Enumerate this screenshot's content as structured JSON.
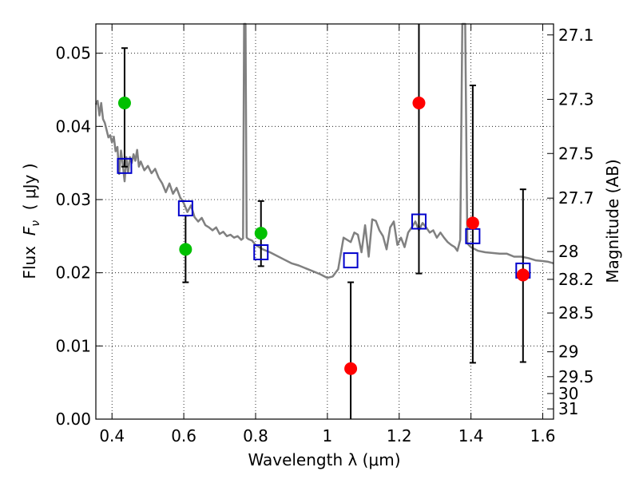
{
  "chart_data": {
    "type": "scatter",
    "xlabel": "Wavelength  λ (μm)",
    "ylabel_parts": {
      "pre": "Flux  ",
      "math": "F",
      "sub": "ν",
      "post": "  ( μJy )"
    },
    "y2label": "Magnitude (AB)",
    "xlim": [
      0.355,
      1.63
    ],
    "ylim": [
      0.0,
      0.054
    ],
    "grid": true,
    "x_ticks": [
      0.4,
      0.6,
      0.8,
      1.0,
      1.2,
      1.4,
      1.6
    ],
    "x_tick_labels": [
      "0.4",
      "0.6",
      "0.8",
      "1",
      "1.2",
      "1.4",
      "1.6"
    ],
    "y_ticks": [
      0.0,
      0.01,
      0.02,
      0.03,
      0.04,
      0.05
    ],
    "y_tick_labels": [
      "0.00",
      "0.01",
      "0.02",
      "0.03",
      "0.04",
      "0.05"
    ],
    "y2_ticks": [
      {
        "label": "27.1",
        "flux": 0.0525
      },
      {
        "label": "27.3",
        "flux": 0.0437
      },
      {
        "label": "27.5",
        "flux": 0.0363
      },
      {
        "label": "27.7",
        "flux": 0.0302
      },
      {
        "label": "28",
        "flux": 0.0229
      },
      {
        "label": "28.2",
        "flux": 0.0191
      },
      {
        "label": "28.5",
        "flux": 0.0145
      },
      {
        "label": "29",
        "flux": 0.0092
      },
      {
        "label": "29.5",
        "flux": 0.0058
      },
      {
        "label": "30",
        "flux": 0.0035
      },
      {
        "label": "31",
        "flux": 0.0014
      }
    ],
    "colors": {
      "template": "#808080",
      "green": "#00c000",
      "red": "#ff0000",
      "model_box": "#0000cc",
      "errorbar": "#000000",
      "grid": "#000000"
    },
    "observed_points": [
      {
        "x": 0.435,
        "y": 0.0432,
        "err_low": 0.0345,
        "err_high": 0.0507,
        "color": "green"
      },
      {
        "x": 0.605,
        "y": 0.0232,
        "err_low": 0.0187,
        "err_high": 0.0278,
        "color": "green"
      },
      {
        "x": 0.815,
        "y": 0.0254,
        "err_low": 0.0209,
        "err_high": 0.0298,
        "color": "green"
      },
      {
        "x": 1.065,
        "y": 0.0069,
        "err_low": 0.0,
        "err_high": 0.0187,
        "color": "red"
      },
      {
        "x": 1.255,
        "y": 0.0432,
        "err_low": 0.0199,
        "err_high": 0.054,
        "color": "red"
      },
      {
        "x": 1.405,
        "y": 0.0268,
        "err_low": 0.0077,
        "err_high": 0.0456,
        "color": "red"
      },
      {
        "x": 1.545,
        "y": 0.0197,
        "err_low": 0.0078,
        "err_high": 0.0314,
        "color": "red"
      }
    ],
    "model_points": [
      {
        "x": 0.435,
        "y": 0.0346
      },
      {
        "x": 0.605,
        "y": 0.0288
      },
      {
        "x": 0.815,
        "y": 0.0228
      },
      {
        "x": 1.065,
        "y": 0.0217
      },
      {
        "x": 1.255,
        "y": 0.027
      },
      {
        "x": 1.405,
        "y": 0.025
      },
      {
        "x": 1.545,
        "y": 0.0203
      }
    ],
    "template_spectrum": [
      [
        0.355,
        0.043
      ],
      [
        0.36,
        0.0435
      ],
      [
        0.365,
        0.0415
      ],
      [
        0.37,
        0.0432
      ],
      [
        0.375,
        0.041
      ],
      [
        0.38,
        0.0405
      ],
      [
        0.385,
        0.0395
      ],
      [
        0.39,
        0.0385
      ],
      [
        0.395,
        0.0388
      ],
      [
        0.4,
        0.0378
      ],
      [
        0.405,
        0.0386
      ],
      [
        0.41,
        0.0366
      ],
      [
        0.415,
        0.0372
      ],
      [
        0.42,
        0.0335
      ],
      [
        0.425,
        0.0367
      ],
      [
        0.43,
        0.0348
      ],
      [
        0.435,
        0.0325
      ],
      [
        0.44,
        0.0358
      ],
      [
        0.445,
        0.0337
      ],
      [
        0.45,
        0.0358
      ],
      [
        0.455,
        0.035
      ],
      [
        0.46,
        0.0362
      ],
      [
        0.465,
        0.0353
      ],
      [
        0.47,
        0.0368
      ],
      [
        0.475,
        0.0345
      ],
      [
        0.48,
        0.0352
      ],
      [
        0.49,
        0.034
      ],
      [
        0.5,
        0.0346
      ],
      [
        0.51,
        0.0336
      ],
      [
        0.52,
        0.0342
      ],
      [
        0.53,
        0.033
      ],
      [
        0.54,
        0.0322
      ],
      [
        0.55,
        0.031
      ],
      [
        0.56,
        0.0322
      ],
      [
        0.57,
        0.0308
      ],
      [
        0.58,
        0.0316
      ],
      [
        0.59,
        0.0303
      ],
      [
        0.6,
        0.0295
      ],
      [
        0.61,
        0.0283
      ],
      [
        0.62,
        0.0292
      ],
      [
        0.63,
        0.0276
      ],
      [
        0.64,
        0.027
      ],
      [
        0.65,
        0.0275
      ],
      [
        0.66,
        0.0265
      ],
      [
        0.67,
        0.0262
      ],
      [
        0.68,
        0.0258
      ],
      [
        0.69,
        0.0262
      ],
      [
        0.7,
        0.0253
      ],
      [
        0.71,
        0.0256
      ],
      [
        0.72,
        0.025
      ],
      [
        0.73,
        0.0252
      ],
      [
        0.74,
        0.0248
      ],
      [
        0.75,
        0.025
      ],
      [
        0.76,
        0.0245
      ],
      [
        0.765,
        0.0247
      ],
      [
        0.768,
        0.054
      ],
      [
        0.772,
        0.054
      ],
      [
        0.775,
        0.0248
      ],
      [
        0.78,
        0.0246
      ],
      [
        0.79,
        0.0244
      ],
      [
        0.8,
        0.0238
      ],
      [
        0.82,
        0.0232
      ],
      [
        0.84,
        0.0228
      ],
      [
        0.86,
        0.0223
      ],
      [
        0.88,
        0.0218
      ],
      [
        0.9,
        0.0213
      ],
      [
        0.92,
        0.021
      ],
      [
        0.94,
        0.0206
      ],
      [
        0.96,
        0.0202
      ],
      [
        0.98,
        0.0198
      ],
      [
        1.0,
        0.0193
      ],
      [
        1.015,
        0.0195
      ],
      [
        1.03,
        0.0205
      ],
      [
        1.045,
        0.0248
      ],
      [
        1.055,
        0.0245
      ],
      [
        1.065,
        0.0242
      ],
      [
        1.075,
        0.0255
      ],
      [
        1.085,
        0.0252
      ],
      [
        1.095,
        0.0228
      ],
      [
        1.105,
        0.0265
      ],
      [
        1.115,
        0.0222
      ],
      [
        1.125,
        0.0273
      ],
      [
        1.135,
        0.0271
      ],
      [
        1.145,
        0.0258
      ],
      [
        1.155,
        0.025
      ],
      [
        1.165,
        0.0232
      ],
      [
        1.175,
        0.0262
      ],
      [
        1.185,
        0.027
      ],
      [
        1.195,
        0.0238
      ],
      [
        1.205,
        0.0248
      ],
      [
        1.215,
        0.0235
      ],
      [
        1.225,
        0.0255
      ],
      [
        1.235,
        0.0262
      ],
      [
        1.245,
        0.027
      ],
      [
        1.255,
        0.0258
      ],
      [
        1.265,
        0.0268
      ],
      [
        1.275,
        0.0262
      ],
      [
        1.285,
        0.0255
      ],
      [
        1.295,
        0.0258
      ],
      [
        1.305,
        0.0248
      ],
      [
        1.315,
        0.0255
      ],
      [
        1.325,
        0.0248
      ],
      [
        1.335,
        0.0242
      ],
      [
        1.345,
        0.0238
      ],
      [
        1.355,
        0.0235
      ],
      [
        1.362,
        0.023
      ],
      [
        1.37,
        0.0245
      ],
      [
        1.376,
        0.054
      ],
      [
        1.384,
        0.054
      ],
      [
        1.39,
        0.024
      ],
      [
        1.4,
        0.0235
      ],
      [
        1.42,
        0.023
      ],
      [
        1.44,
        0.0228
      ],
      [
        1.46,
        0.0227
      ],
      [
        1.48,
        0.0226
      ],
      [
        1.5,
        0.0226
      ],
      [
        1.52,
        0.0222
      ],
      [
        1.54,
        0.0222
      ],
      [
        1.56,
        0.022
      ],
      [
        1.58,
        0.0217
      ],
      [
        1.6,
        0.0216
      ],
      [
        1.615,
        0.0215
      ],
      [
        1.63,
        0.0213
      ]
    ]
  }
}
